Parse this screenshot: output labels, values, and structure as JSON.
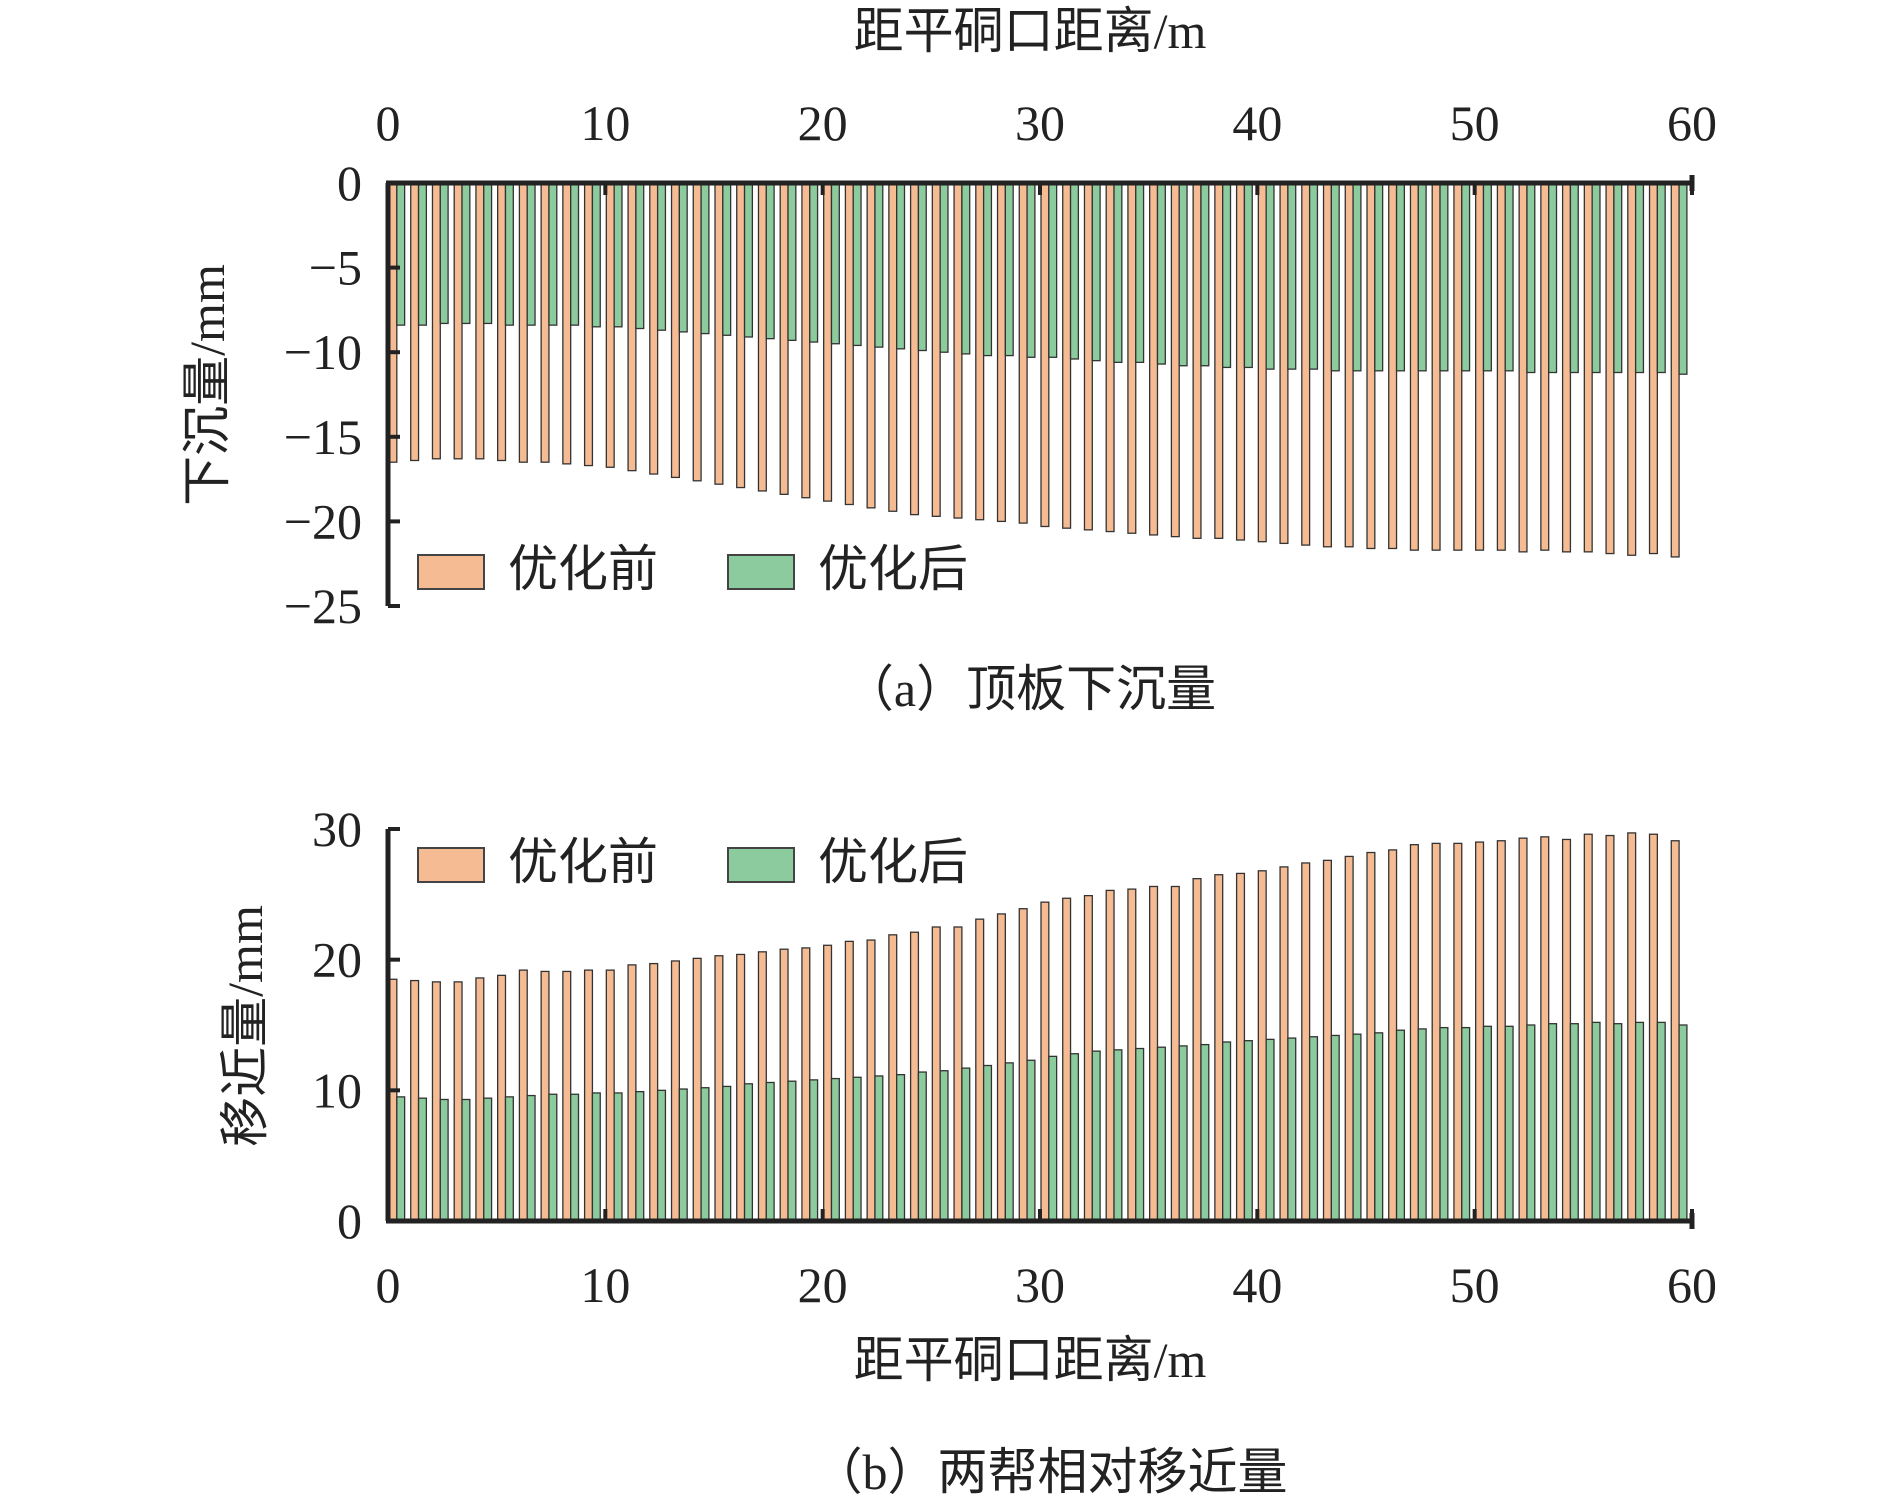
{
  "chart_data": [
    {
      "type": "bar",
      "caption": "（a）顶板下沉量",
      "xlabel": "距平硐口距离/m",
      "ylabel": "下沉量/mm",
      "xlim": [
        0,
        60
      ],
      "ylim": [
        -25,
        0
      ],
      "x_ticks": [
        "0",
        "10",
        "20",
        "30",
        "40",
        "50",
        "60"
      ],
      "y_ticks": [
        "0",
        "−5",
        "−10",
        "−15",
        "−20",
        "−25"
      ],
      "x_axis_position": "top",
      "legend_position": "bottom-left",
      "grid": false,
      "x": [
        0,
        1,
        2,
        3,
        4,
        5,
        6,
        7,
        8,
        9,
        10,
        11,
        12,
        13,
        14,
        15,
        16,
        17,
        18,
        19,
        20,
        21,
        22,
        23,
        24,
        25,
        26,
        27,
        28,
        29,
        30,
        31,
        32,
        33,
        34,
        35,
        36,
        37,
        38,
        39,
        40,
        41,
        42,
        43,
        44,
        45,
        46,
        47,
        48,
        49,
        50,
        51,
        52,
        53,
        54,
        55,
        56,
        57,
        58,
        59
      ],
      "series": [
        {
          "name": "优化前",
          "color": "#F5BC94",
          "values": [
            -16.5,
            -16.4,
            -16.3,
            -16.3,
            -16.3,
            -16.4,
            -16.5,
            -16.5,
            -16.6,
            -16.7,
            -16.8,
            -17.0,
            -17.2,
            -17.4,
            -17.6,
            -17.8,
            -18.0,
            -18.2,
            -18.4,
            -18.6,
            -18.8,
            -19.0,
            -19.2,
            -19.4,
            -19.6,
            -19.7,
            -19.8,
            -19.9,
            -20.0,
            -20.1,
            -20.3,
            -20.4,
            -20.5,
            -20.6,
            -20.7,
            -20.8,
            -20.9,
            -21.0,
            -21.0,
            -21.1,
            -21.2,
            -21.3,
            -21.4,
            -21.5,
            -21.5,
            -21.6,
            -21.6,
            -21.7,
            -21.7,
            -21.7,
            -21.7,
            -21.7,
            -21.8,
            -21.7,
            -21.8,
            -21.8,
            -21.9,
            -22.0,
            -21.9,
            -22.1
          ]
        },
        {
          "name": "优化后",
          "color": "#8CCB9E",
          "values": [
            -8.4,
            -8.4,
            -8.3,
            -8.3,
            -8.3,
            -8.4,
            -8.4,
            -8.4,
            -8.4,
            -8.5,
            -8.5,
            -8.6,
            -8.7,
            -8.8,
            -8.9,
            -9.0,
            -9.1,
            -9.2,
            -9.3,
            -9.4,
            -9.5,
            -9.6,
            -9.7,
            -9.8,
            -9.9,
            -10.0,
            -10.1,
            -10.2,
            -10.2,
            -10.3,
            -10.3,
            -10.4,
            -10.5,
            -10.6,
            -10.6,
            -10.7,
            -10.8,
            -10.8,
            -10.9,
            -10.9,
            -11.0,
            -11.0,
            -11.0,
            -11.1,
            -11.1,
            -11.1,
            -11.1,
            -11.1,
            -11.1,
            -11.1,
            -11.1,
            -11.1,
            -11.2,
            -11.2,
            -11.2,
            -11.2,
            -11.2,
            -11.2,
            -11.2,
            -11.3
          ]
        }
      ]
    },
    {
      "type": "bar",
      "caption": "（b）两帮相对移近量",
      "xlabel": "距平硐口距离/m",
      "ylabel": "移近量/mm",
      "xlim": [
        0,
        60
      ],
      "ylim": [
        0,
        30
      ],
      "x_ticks": [
        "0",
        "10",
        "20",
        "30",
        "40",
        "50",
        "60"
      ],
      "y_ticks": [
        "0",
        "10",
        "20",
        "30"
      ],
      "x_axis_position": "bottom",
      "legend_position": "top-left",
      "grid": false,
      "x": [
        0,
        1,
        2,
        3,
        4,
        5,
        6,
        7,
        8,
        9,
        10,
        11,
        12,
        13,
        14,
        15,
        16,
        17,
        18,
        19,
        20,
        21,
        22,
        23,
        24,
        25,
        26,
        27,
        28,
        29,
        30,
        31,
        32,
        33,
        34,
        35,
        36,
        37,
        38,
        39,
        40,
        41,
        42,
        43,
        44,
        45,
        46,
        47,
        48,
        49,
        50,
        51,
        52,
        53,
        54,
        55,
        56,
        57,
        58,
        59
      ],
      "series": [
        {
          "name": "优化前",
          "color": "#F5BC94",
          "values": [
            18.5,
            18.4,
            18.3,
            18.3,
            18.6,
            18.8,
            19.2,
            19.1,
            19.1,
            19.2,
            19.2,
            19.6,
            19.7,
            19.9,
            20.1,
            20.3,
            20.4,
            20.6,
            20.8,
            20.9,
            21.1,
            21.4,
            21.5,
            21.9,
            22.1,
            22.5,
            22.5,
            23.1,
            23.5,
            23.9,
            24.4,
            24.7,
            24.9,
            25.3,
            25.4,
            25.6,
            25.6,
            26.2,
            26.5,
            26.6,
            26.8,
            27.1,
            27.4,
            27.6,
            27.9,
            28.2,
            28.4,
            28.8,
            28.9,
            28.9,
            29.0,
            29.1,
            29.3,
            29.4,
            29.2,
            29.6,
            29.5,
            29.7,
            29.6,
            29.1
          ]
        },
        {
          "name": "优化后",
          "color": "#8CCB9E",
          "values": [
            9.5,
            9.4,
            9.3,
            9.3,
            9.4,
            9.5,
            9.6,
            9.7,
            9.7,
            9.8,
            9.8,
            9.9,
            10.0,
            10.1,
            10.2,
            10.3,
            10.5,
            10.6,
            10.7,
            10.8,
            10.9,
            11.0,
            11.1,
            11.2,
            11.4,
            11.5,
            11.7,
            11.9,
            12.1,
            12.3,
            12.6,
            12.8,
            13.0,
            13.1,
            13.2,
            13.3,
            13.4,
            13.5,
            13.7,
            13.8,
            13.9,
            14.0,
            14.1,
            14.2,
            14.3,
            14.4,
            14.6,
            14.7,
            14.8,
            14.8,
            14.9,
            14.9,
            15.0,
            15.1,
            15.1,
            15.2,
            15.1,
            15.2,
            15.2,
            15.0
          ]
        }
      ]
    }
  ]
}
